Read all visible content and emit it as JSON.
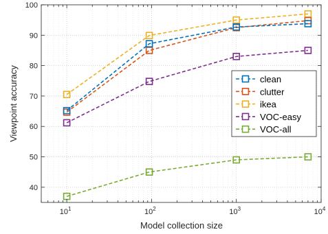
{
  "chart_data": {
    "type": "line",
    "xscale": "log",
    "x": [
      10,
      94,
      1000,
      7000
    ],
    "xlim": [
      5,
      10000
    ],
    "ylim": [
      35,
      100
    ],
    "xlabel": "Model collection size",
    "ylabel": "Viewpoint accuracy",
    "yticks": [
      40,
      50,
      60,
      70,
      80,
      90,
      100
    ],
    "xticks": [
      {
        "value": 10,
        "base": "10",
        "exp": "1"
      },
      {
        "value": 100,
        "base": "10",
        "exp": "2"
      },
      {
        "value": 1000,
        "base": "10",
        "exp": "3"
      },
      {
        "value": 10000,
        "base": "10",
        "exp": "4"
      }
    ],
    "grid": true,
    "legend_position": "right",
    "series": [
      {
        "name": "clean",
        "color": "#0072BD",
        "values": [
          65.2,
          87.2,
          92.7,
          93.8
        ]
      },
      {
        "name": "clutter",
        "color": "#D95319",
        "values": [
          64.7,
          85.0,
          92.5,
          94.8
        ]
      },
      {
        "name": "ikea",
        "color": "#EDB120",
        "values": [
          70.5,
          89.9,
          95.0,
          97.0
        ]
      },
      {
        "name": "VOC-easy",
        "color": "#7E2F8E",
        "values": [
          61.2,
          74.8,
          83.0,
          85.0
        ]
      },
      {
        "name": "VOC-all",
        "color": "#77AC30",
        "values": [
          37.0,
          45.0,
          49.0,
          50.0
        ]
      }
    ]
  }
}
